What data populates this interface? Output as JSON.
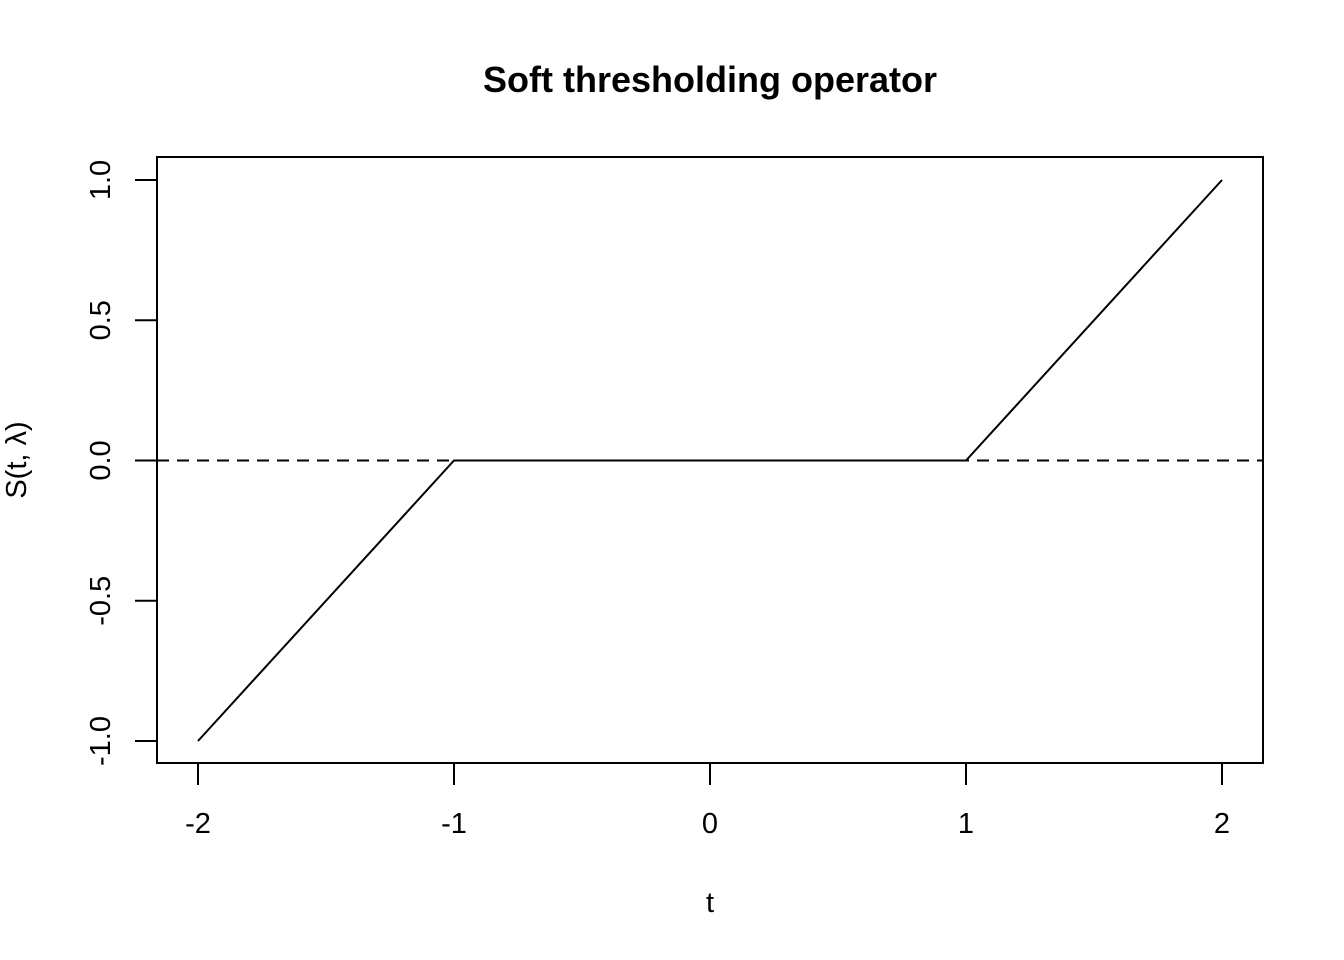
{
  "chart_data": {
    "type": "line",
    "title": "Soft thresholding operator",
    "xlabel": "t",
    "ylabel": "S(t, λ)",
    "xlim": [
      -2,
      2
    ],
    "ylim": [
      -1,
      1
    ],
    "xticks": [
      -2,
      -1,
      0,
      1,
      2
    ],
    "xtick_labels": [
      "-2",
      "-1",
      "0",
      "1",
      "2"
    ],
    "yticks": [
      -1.0,
      -0.5,
      0.0,
      0.5,
      1.0
    ],
    "ytick_labels": [
      "-1.0",
      "-0.5",
      "0.0",
      "0.5",
      "1.0"
    ],
    "series": [
      {
        "x": [
          -2,
          -1,
          1,
          2
        ],
        "y": [
          -1,
          0,
          0,
          1
        ],
        "color": "#000000",
        "line_style": "solid"
      }
    ],
    "reference_lines": [
      {
        "orientation": "horizontal",
        "y": 0,
        "line_style": "dashed",
        "color": "#000000"
      }
    ],
    "grid": false,
    "legend": "none"
  }
}
